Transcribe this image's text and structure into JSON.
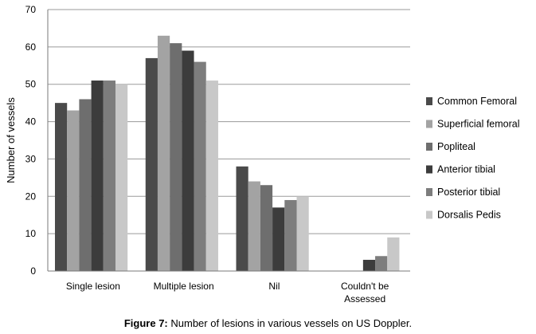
{
  "chart_data": {
    "type": "bar",
    "ylabel": "Number of vessels",
    "ylim": [
      0,
      70
    ],
    "yticks": [
      0,
      10,
      20,
      30,
      40,
      50,
      60,
      70
    ],
    "grid": true,
    "legend_position": "right",
    "categories": [
      "Single lesion",
      "Multiple lesion",
      "Nil",
      "Couldn't be Assessed"
    ],
    "series": [
      {
        "name": "Common Femoral",
        "color": "#4a4a4a",
        "values": [
          45,
          57,
          28,
          0
        ]
      },
      {
        "name": "Superficial femoral",
        "color": "#a3a3a3",
        "values": [
          43,
          63,
          24,
          0
        ]
      },
      {
        "name": "Popliteal",
        "color": "#6e6e6e",
        "values": [
          46,
          61,
          23,
          0
        ]
      },
      {
        "name": "Anterior tibial",
        "color": "#3c3c3c",
        "values": [
          51,
          59,
          17,
          3
        ]
      },
      {
        "name": "Posterior tibial",
        "color": "#7d7d7d",
        "values": [
          51,
          56,
          19,
          4
        ]
      },
      {
        "name": "Dorsalis Pedis",
        "color": "#c8c8c8",
        "values": [
          50,
          51,
          20,
          9
        ]
      }
    ]
  },
  "caption": {
    "label": "Figure 7:",
    "text": " Number of lesions in various vessels on US Doppler."
  }
}
